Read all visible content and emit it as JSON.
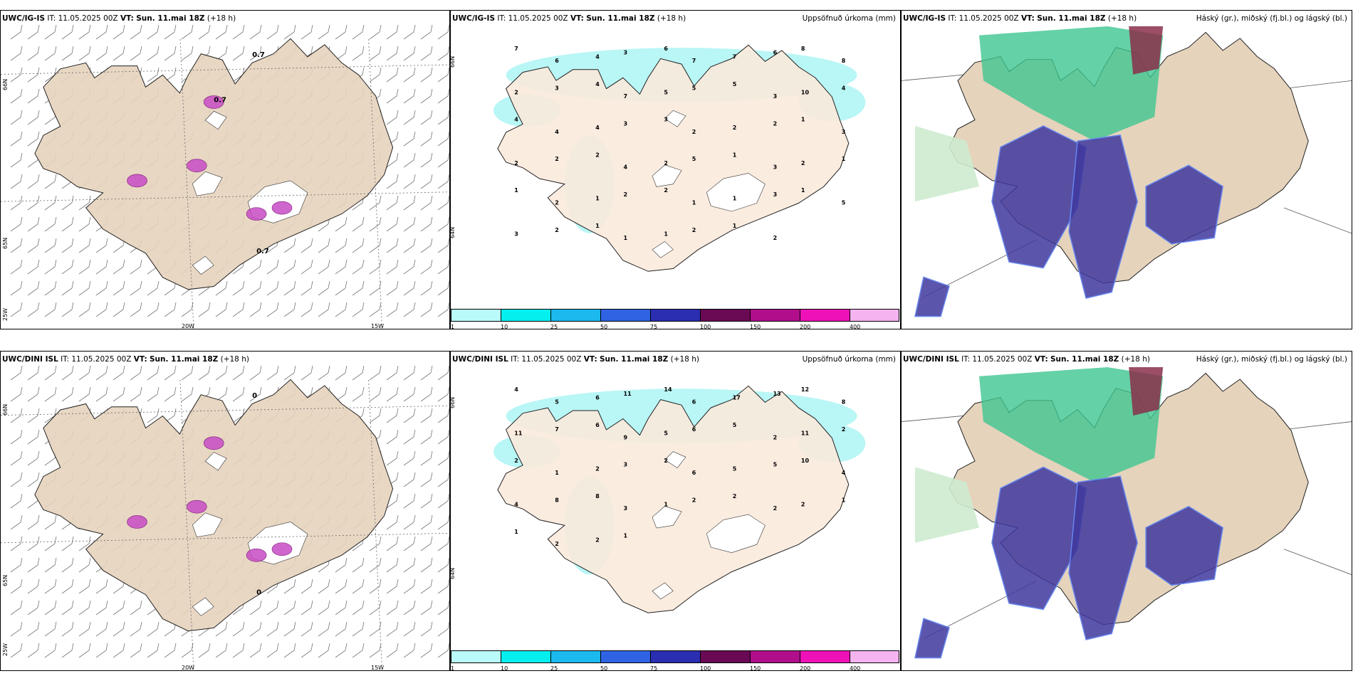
{
  "rows": [
    {
      "model": "UWC/IG-IS",
      "panels": [
        {
          "model": "UWC/IG-IS",
          "it_label": "IT:",
          "it": "11.05.2025 00Z",
          "vt_label": "VT:",
          "vt": "Sun. 11.mai 18Z",
          "lead": "(+18 h)",
          "title_right": ""
        },
        {
          "model": "UWC/IG-IS",
          "it_label": "IT:",
          "it": "11.05.2025 00Z",
          "vt_label": "VT:",
          "vt": "Sun. 11.mai 18Z",
          "lead": "(+18 h)",
          "title_right": "Uppsöfnuð úrkoma (mm)"
        },
        {
          "model": "UWC/IG-IS",
          "it_label": "IT:",
          "it": "11.05.2025 00Z",
          "vt_label": "VT:",
          "vt": "Sun. 11.mai 18Z",
          "lead": "(+18 h)",
          "title_right": "Háský (gr.), miðský (fj.bl.) og lágský (bl.)"
        }
      ],
      "wind_labels": [
        "0.7",
        "0.7",
        "0.7"
      ],
      "precip_values": [
        "7",
        "6",
        "4",
        "3",
        "6",
        "7",
        "7",
        "6",
        "8",
        "8",
        "2",
        "3",
        "4",
        "7",
        "5",
        "5",
        "5",
        "3",
        "10",
        "4",
        "4",
        "4",
        "4",
        "3",
        "3",
        "2",
        "2",
        "2",
        "1",
        "3",
        "2",
        "2",
        "2",
        "4",
        "2",
        "5",
        "1",
        "3",
        "2",
        "1",
        "1",
        "2",
        "1",
        "2",
        "2",
        "1",
        "1",
        "3",
        "1",
        "5",
        "3",
        "2",
        "1",
        "1",
        "1",
        "2",
        "1",
        "2"
      ]
    },
    {
      "model": "UWC/DINI ISL",
      "panels": [
        {
          "model": "UWC/DINI ISL",
          "it_label": "IT:",
          "it": "11.05.2025 00Z",
          "vt_label": "VT:",
          "vt": "Sun. 11.mai 18Z",
          "lead": "(+18 h)",
          "title_right": ""
        },
        {
          "model": "UWC/DINI ISL",
          "it_label": "IT:",
          "it": "11.05.2025 00Z",
          "vt_label": "VT:",
          "vt": "Sun. 11.mai 18Z",
          "lead": "(+18 h)",
          "title_right": "Uppsöfnuð úrkoma (mm)"
        },
        {
          "model": "UWC/DINI ISL",
          "it_label": "IT:",
          "it": "11.05.2025 00Z",
          "vt_label": "VT:",
          "vt": "Sun. 11.mai 18Z",
          "lead": "(+18 h)",
          "title_right": "Háský (gr.), miðský (fj.bl.) og lágský (bl.)"
        }
      ],
      "wind_labels": [
        "0",
        "0"
      ],
      "precip_values": [
        "4",
        "5",
        "6",
        "11",
        "14",
        "6",
        "17",
        "13",
        "12",
        "8",
        "11",
        "7",
        "6",
        "9",
        "5",
        "6",
        "5",
        "2",
        "11",
        "2",
        "2",
        "1",
        "2",
        "3",
        "2",
        "6",
        "5",
        "5",
        "10",
        "4",
        "4",
        "8",
        "8",
        "3",
        "1",
        "2",
        "2",
        "2",
        "2",
        "1",
        "1",
        "2",
        "2",
        "1"
      ]
    }
  ],
  "gridlines": {
    "lat_labels": [
      "66N",
      "65N",
      "64N"
    ],
    "lon_labels": [
      "25W",
      "20W",
      "15W"
    ]
  },
  "colorbar": {
    "ticks": [
      "1",
      "10",
      "25",
      "50",
      "75",
      "100",
      "150",
      "200",
      "400"
    ],
    "colors": [
      "#b9fbfb",
      "#06efef",
      "#1bb9ee",
      "#2f63e3",
      "#2b2eb1",
      "#6a0a55",
      "#b10e8c",
      "#ee11b8",
      "#f5b3f0"
    ]
  },
  "colors": {
    "land": "#e5d3bc",
    "land_precip": "#fbeadd",
    "glacier": "#ffffff",
    "precip_light": "#b9f6f6",
    "high_cloud": "#3fc690",
    "mid_cloud": "#40379e",
    "low_cloud": "#6686ee",
    "thunder": "#c74bc4",
    "wind_barb": "#777777"
  }
}
